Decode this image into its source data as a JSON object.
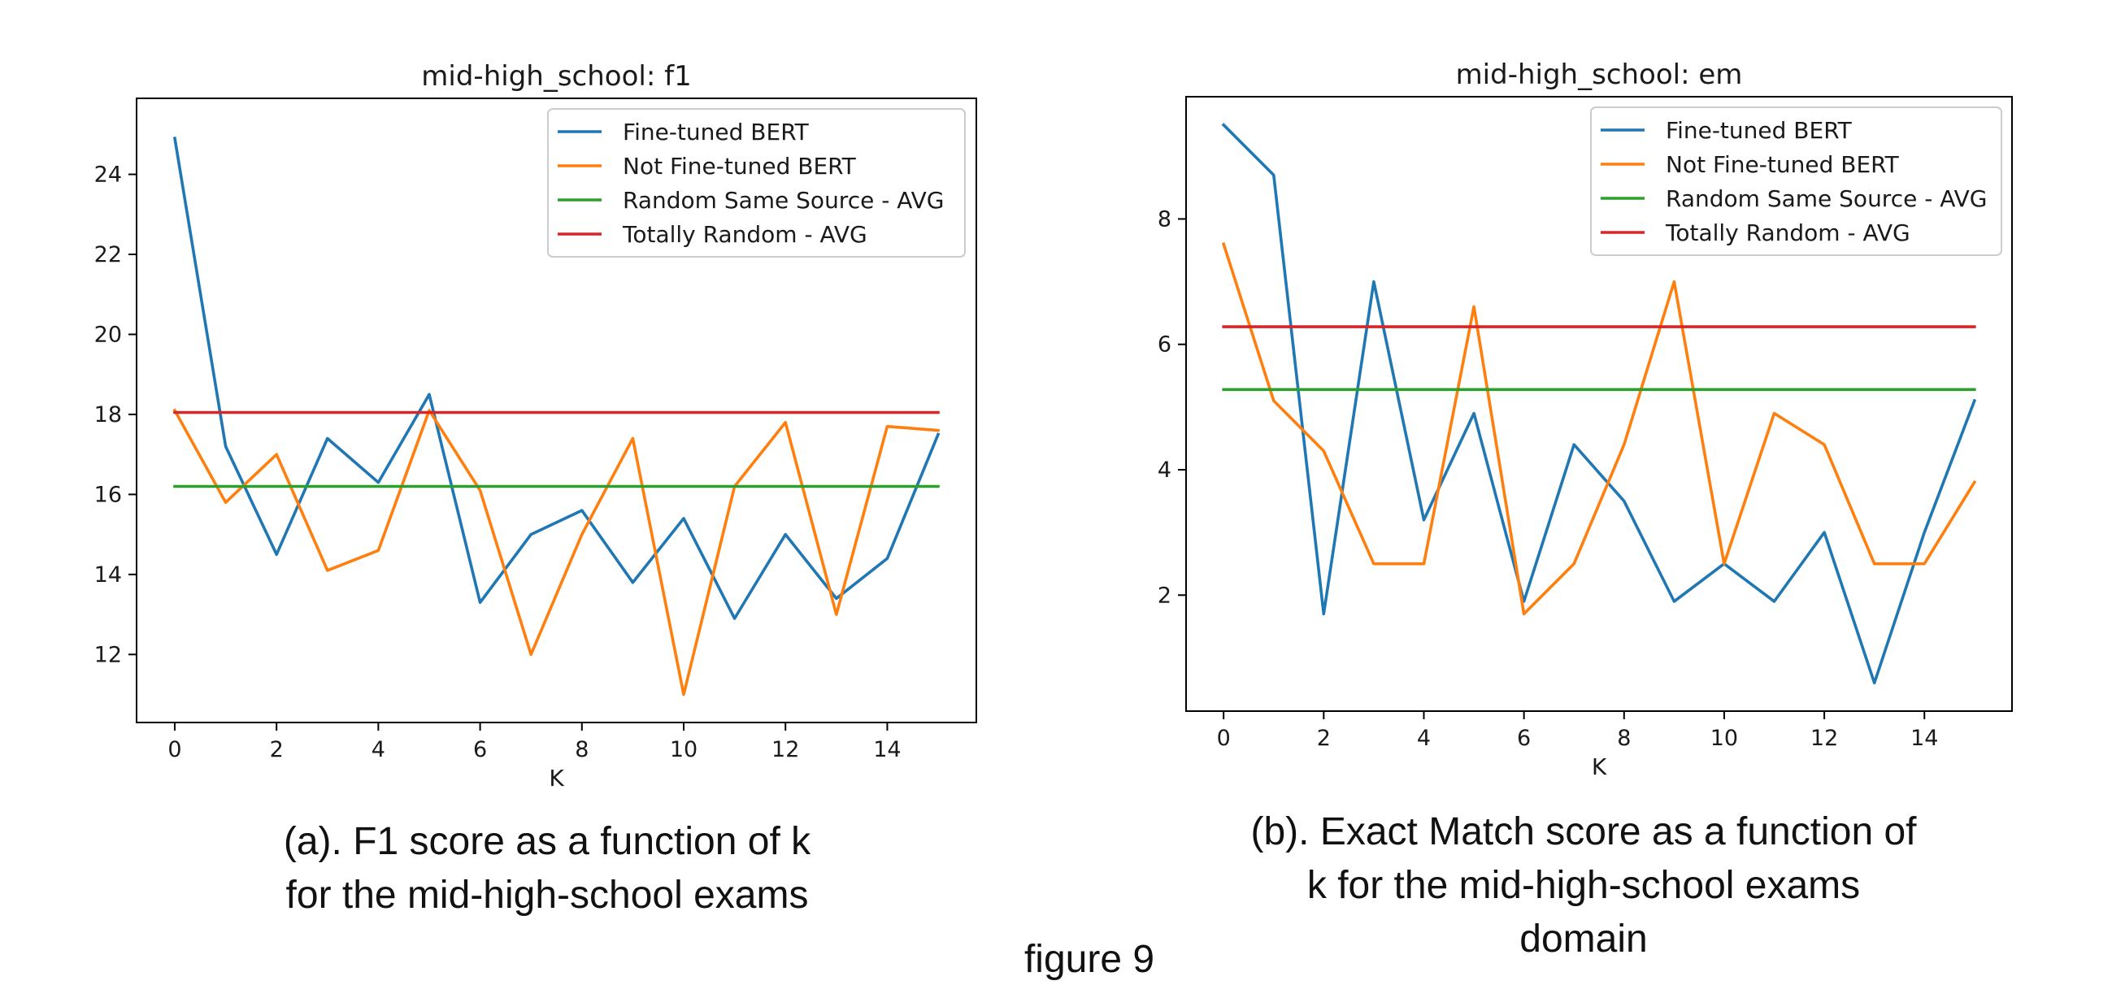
{
  "chart_data": [
    {
      "type": "line",
      "title": "mid-high_school: f1",
      "xlabel": "K",
      "ylabel": "",
      "x": [
        0,
        1,
        2,
        3,
        4,
        5,
        6,
        7,
        8,
        9,
        10,
        11,
        12,
        13,
        14,
        15
      ],
      "xlim": [
        -0.75,
        15.75
      ],
      "ylim": [
        10.3,
        25.9
      ],
      "xticks": [
        0,
        2,
        4,
        6,
        8,
        10,
        12,
        14
      ],
      "yticks": [
        12,
        14,
        16,
        18,
        20,
        22,
        24
      ],
      "grid": false,
      "legend_position": "top-right",
      "series": [
        {
          "name": "Fine-tuned BERT",
          "color": "#1f77b4",
          "values": [
            24.9,
            17.2,
            14.5,
            17.4,
            16.3,
            18.5,
            13.3,
            15.0,
            15.6,
            13.8,
            15.4,
            12.9,
            15.0,
            13.4,
            14.4,
            17.5
          ]
        },
        {
          "name": "Not Fine-tuned BERT",
          "color": "#ff7f0e",
          "values": [
            18.1,
            15.8,
            17.0,
            14.1,
            14.6,
            18.1,
            16.1,
            12.0,
            15.0,
            17.4,
            11.0,
            16.2,
            17.8,
            13.0,
            17.7,
            17.6
          ]
        },
        {
          "name": "Random Same Source - AVG",
          "color": "#2ca02c",
          "values": [
            16.2,
            16.2,
            16.2,
            16.2,
            16.2,
            16.2,
            16.2,
            16.2,
            16.2,
            16.2,
            16.2,
            16.2,
            16.2,
            16.2,
            16.2,
            16.2
          ]
        },
        {
          "name": "Totally Random - AVG",
          "color": "#d62728",
          "values": [
            18.05,
            18.05,
            18.05,
            18.05,
            18.05,
            18.05,
            18.05,
            18.05,
            18.05,
            18.05,
            18.05,
            18.05,
            18.05,
            18.05,
            18.05,
            18.05
          ]
        }
      ]
    },
    {
      "type": "line",
      "title": "mid-high_school: em",
      "xlabel": "K",
      "ylabel": "",
      "x": [
        0,
        1,
        2,
        3,
        4,
        5,
        6,
        7,
        8,
        9,
        10,
        11,
        12,
        13,
        14,
        15
      ],
      "xlim": [
        -0.75,
        15.75
      ],
      "ylim": [
        0.15,
        9.95
      ],
      "xticks": [
        0,
        2,
        4,
        6,
        8,
        10,
        12,
        14
      ],
      "yticks": [
        2,
        4,
        6,
        8
      ],
      "grid": false,
      "legend_position": "top-right",
      "series": [
        {
          "name": "Fine-tuned BERT",
          "color": "#1f77b4",
          "values": [
            9.5,
            8.7,
            1.7,
            7.0,
            3.2,
            4.9,
            1.9,
            4.4,
            3.5,
            1.9,
            2.5,
            1.9,
            3.0,
            0.6,
            3.0,
            5.1
          ]
        },
        {
          "name": "Not Fine-tuned BERT",
          "color": "#ff7f0e",
          "values": [
            7.6,
            5.1,
            4.3,
            2.5,
            2.5,
            6.6,
            1.7,
            2.5,
            4.4,
            7.0,
            2.5,
            4.9,
            4.4,
            2.5,
            2.5,
            3.8
          ]
        },
        {
          "name": "Random Same Source - AVG",
          "color": "#2ca02c",
          "values": [
            5.28,
            5.28,
            5.28,
            5.28,
            5.28,
            5.28,
            5.28,
            5.28,
            5.28,
            5.28,
            5.28,
            5.28,
            5.28,
            5.28,
            5.28,
            5.28
          ]
        },
        {
          "name": "Totally Random - AVG",
          "color": "#d62728",
          "values": [
            6.28,
            6.28,
            6.28,
            6.28,
            6.28,
            6.28,
            6.28,
            6.28,
            6.28,
            6.28,
            6.28,
            6.28,
            6.28,
            6.28,
            6.28,
            6.28
          ]
        }
      ]
    }
  ],
  "captions": {
    "left": [
      "(a). F1 score as a function of k",
      "for the mid-high-school exams"
    ],
    "right": [
      "(b). Exact Match score as a function of",
      "k for the mid-high-school exams",
      "domain"
    ]
  },
  "figure_label": "figure 9"
}
